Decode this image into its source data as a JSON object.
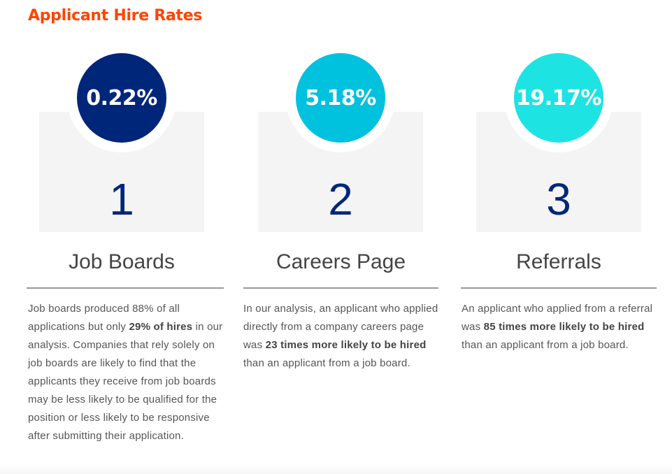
{
  "title": "Applicant Hire Rates",
  "colors": {
    "title": "#ff4400",
    "number": "#00267a",
    "box": "#f4f4f4"
  },
  "sources": [
    {
      "rate": "0.22%",
      "number": "1",
      "name": "Job Boards",
      "color": "#00267a",
      "desc": {
        "pre": "Job boards produced 88% of all applications but only ",
        "bold": "29% of hires",
        "post": " in our analysis. Companies that rely solely on job boards are likely to find that the applicants they receive from job boards may be less likely to be qualified for the position or less likely to be responsive after submitting their application."
      }
    },
    {
      "rate": "5.18%",
      "number": "2",
      "name": "Careers Page",
      "color": "#00c1de",
      "desc": {
        "pre": "In our analysis, an applicant who applied directly from a company careers page was ",
        "bold": "23 times more likely to be hired",
        "post": " than an applicant from a job board."
      }
    },
    {
      "rate": "19.17%",
      "number": "3",
      "name": "Referrals",
      "color": "#1ee3e3",
      "desc": {
        "pre": "An applicant who applied from a referral was ",
        "bold": "85 times more likely to be hired",
        "post": " than an applicant from a job board."
      }
    }
  ]
}
